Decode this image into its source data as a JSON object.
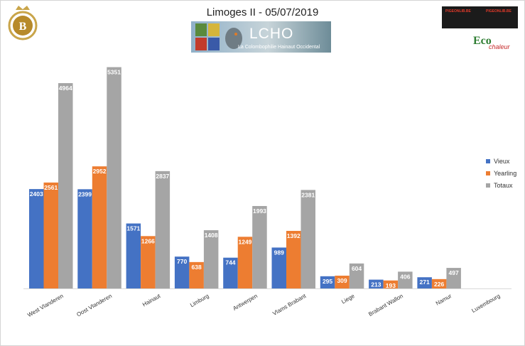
{
  "chart_data": {
    "type": "bar",
    "title": "Limoges II - 05/07/2019",
    "categories": [
      "West Vlanderen",
      "Oost Vlanderen",
      "Hainaut",
      "Limburg",
      "Antwerpen",
      "Vlams Brabant",
      "Liege",
      "Brabant Wallon",
      "Namur",
      "Luxembourg"
    ],
    "series": [
      {
        "name": "Vieux",
        "color": "#4472c4",
        "values": [
          2403,
          2399,
          1571,
          770,
          744,
          989,
          295,
          213,
          271,
          0
        ]
      },
      {
        "name": "Yearling",
        "color": "#ed7d31",
        "values": [
          2561,
          2952,
          1266,
          638,
          1249,
          1392,
          309,
          193,
          226,
          0
        ]
      },
      {
        "name": "Totaux",
        "color": "#a5a5a5",
        "values": [
          4964,
          5351,
          2837,
          1408,
          1993,
          2381,
          604,
          406,
          497,
          0
        ]
      }
    ],
    "ylim": [
      0,
      5600
    ],
    "grid": false,
    "legend_position": "right"
  },
  "logos": {
    "banner_text": "LCHO",
    "banner_subtitle": "La Colombophilie Hainaut Occidental",
    "eco_text": "Eco",
    "eco_sub": "chaleur",
    "pigeon_banner_a": "PIGEONLIB.BE",
    "pigeon_banner_b": "PIGEONLIB.BE"
  }
}
